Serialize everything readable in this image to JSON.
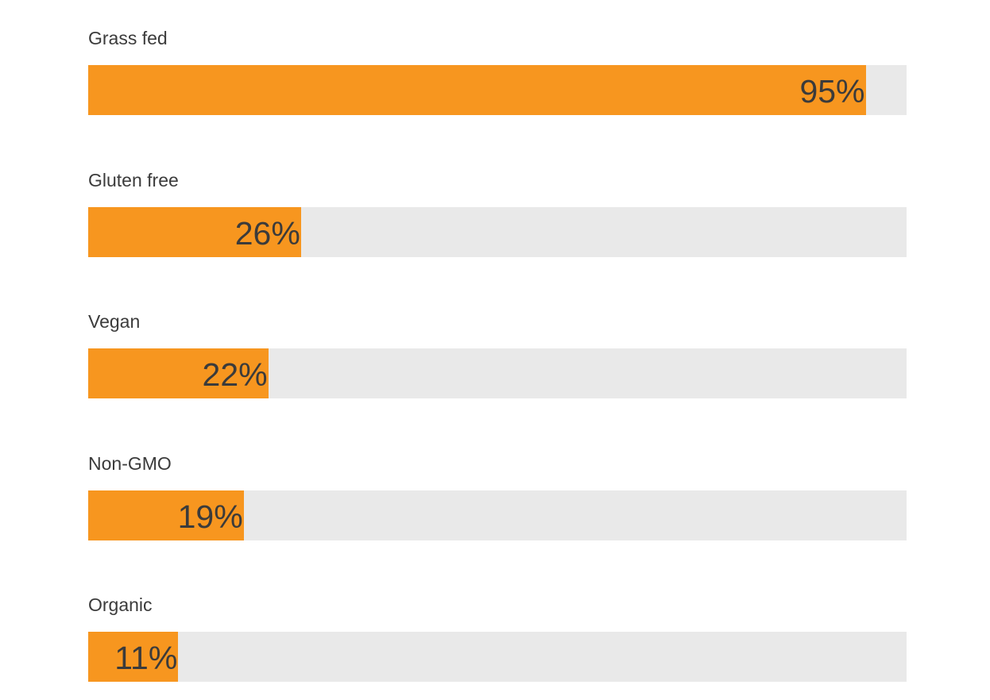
{
  "chart_data": {
    "type": "bar",
    "orientation": "horizontal",
    "categories": [
      "Grass fed",
      "Gluten free",
      "Vegan",
      "Non-GMO",
      "Organic"
    ],
    "values": [
      95,
      26,
      22,
      19,
      11
    ],
    "value_labels": [
      "95%",
      "26%",
      "22%",
      "19%",
      "11%"
    ],
    "xlim": [
      0,
      100
    ],
    "grid": false,
    "colors": {
      "fill": "#f7961f",
      "track": "#e9e9e9",
      "text": "#3b3b3b"
    }
  }
}
